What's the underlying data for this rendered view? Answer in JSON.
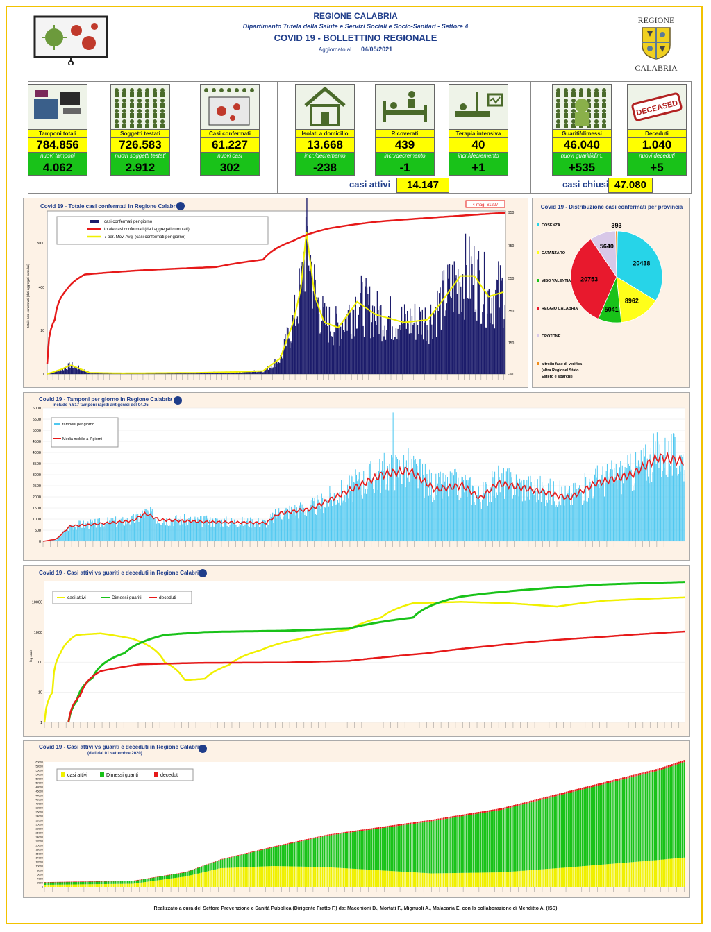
{
  "header": {
    "region": "REGIONE CALABRIA",
    "department": "Dipartimento Tutela della Salute e Servizi Sociali e Socio-Sanitari - Settore 4",
    "title": "COVID 19 - BOLLETTINO REGIONALE",
    "updated_label": "Aggiornato al",
    "updated_date": "04/05/2021",
    "logo_top": "REGIONE",
    "logo_bottom": "CALABRIA"
  },
  "kpis": [
    {
      "label": "Tamponi totali",
      "value": "784.856",
      "sub_label": "nuovi tamponi",
      "sub_value": "4.062"
    },
    {
      "label": "Soggetti testati",
      "value": "726.583",
      "sub_label": "nuovi soggetti testati",
      "sub_value": "2.912"
    },
    {
      "label": "Casi confermati",
      "value": "61.227",
      "sub_label": "nuovi casi",
      "sub_value": "302"
    },
    {
      "label": "Isolati a domicilio",
      "value": "13.668",
      "sub_label": "incr./decremento",
      "sub_value": "-238"
    },
    {
      "label": "Ricoverati",
      "value": "439",
      "sub_label": "incr./decremento",
      "sub_value": "-1"
    },
    {
      "label": "Terapia intensiva",
      "value": "40",
      "sub_label": "incr./decremento",
      "sub_value": "+1"
    },
    {
      "label": "Guariti/dimessi",
      "value": "46.040",
      "sub_label": "nuovi guariti/dim.",
      "sub_value": "+535"
    },
    {
      "label": "Deceduti",
      "value": "1.040",
      "sub_label": "nuovi deceduti",
      "sub_value": "+5"
    }
  ],
  "deceased_stamp": "DECEASED",
  "totals": {
    "active_label": "casi attivi",
    "active_value": "14.147",
    "closed_label": "casi chiusi",
    "closed_value": "47.080"
  },
  "footer": "Realizzato a cura del Settore Prevenzione e Sanità Pubblica (Dirigente Fratto F.) da:  Macchioni D., Mortati F., Mignuoli A., Malacaria E. con la collaborazione di Menditto A. (ISS)",
  "chart_data": [
    {
      "type": "bar+line",
      "title": "Covid 19 - Totale casi confermati in Regione Calabria",
      "annotation": "4-mag; 61227",
      "ylabel": "totale casi confermati (dati aggregati cumulati)",
      "y_left_ticks": [
        "8000",
        "400",
        "20",
        "1"
      ],
      "y_right_ticks": [
        "950",
        "750",
        "550",
        "350",
        "150",
        "-50"
      ],
      "legend": [
        "casi confermati per giorno",
        "totale casi confermati (dati aggregati cumulati)",
        "7 per. Mov. Avg. (casi confermati per giorno)"
      ],
      "colors": {
        "bars": "#1c1c6b",
        "cumulative": "#e61919",
        "avg": "#f0f000"
      },
      "daily_keypoints": [
        [
          0,
          0
        ],
        [
          15,
          18
        ],
        [
          25,
          35
        ],
        [
          35,
          20
        ],
        [
          45,
          5
        ],
        [
          80,
          3
        ],
        [
          120,
          4
        ],
        [
          160,
          5
        ],
        [
          200,
          8
        ],
        [
          230,
          12
        ],
        [
          248,
          60
        ],
        [
          262,
          200
        ],
        [
          270,
          330
        ],
        [
          276,
          550
        ],
        [
          285,
          300
        ],
        [
          295,
          200
        ],
        [
          310,
          180
        ],
        [
          330,
          280
        ],
        [
          350,
          230
        ],
        [
          380,
          200
        ],
        [
          405,
          210
        ],
        [
          420,
          280
        ],
        [
          440,
          380
        ],
        [
          455,
          380
        ],
        [
          470,
          300
        ],
        [
          488,
          320
        ]
      ],
      "cumulative_keypoints": [
        [
          0,
          1
        ],
        [
          8,
          40
        ],
        [
          20,
          300
        ],
        [
          40,
          900
        ],
        [
          100,
          1200
        ],
        [
          180,
          1500
        ],
        [
          230,
          2500
        ],
        [
          262,
          9000
        ],
        [
          300,
          21000
        ],
        [
          350,
          33000
        ],
        [
          400,
          42000
        ],
        [
          440,
          50000
        ],
        [
          488,
          61227
        ]
      ]
    },
    {
      "type": "pie",
      "title": "Covid 19 - Distribuzione casi confermati per provincia",
      "labels": [
        "COSENZA",
        "CATANZARO",
        "VIBO VALENTIA",
        "REGGIO CALABRIA",
        "CROTONE",
        "altro/in fase di verifica (altra Regione/ Stato Estero e sbarchi)"
      ],
      "values": [
        20438,
        8962,
        5041,
        20753,
        5640,
        393
      ],
      "value_labels": [
        "20438",
        "8962",
        "5041",
        "20753",
        "5640",
        "393"
      ],
      "colors": [
        "#27d4e8",
        "#ffff1a",
        "#19c219",
        "#e8192d",
        "#d8c8e8",
        "#f08c1a"
      ]
    },
    {
      "type": "bar+line",
      "title": "Covid 19 - Tamponi per giorno in Regione Calabria",
      "subtitle": "include n.517 tamponi rapidi antigenici del 04.05",
      "y_ticks": [
        "6000",
        "5500",
        "5000",
        "4500",
        "4000",
        "3500",
        "3000",
        "2500",
        "2000",
        "1500",
        "1000",
        "500",
        "0"
      ],
      "ylim": [
        0,
        6000
      ],
      "legend": [
        "tamponi per giorno",
        "Media mobile a 7 giorni"
      ],
      "colors": {
        "bars": "#4fc8f0",
        "avg": "#e61919"
      },
      "avg_keypoints": [
        [
          0,
          0
        ],
        [
          15,
          100
        ],
        [
          30,
          700
        ],
        [
          60,
          800
        ],
        [
          100,
          950
        ],
        [
          115,
          1300
        ],
        [
          130,
          1000
        ],
        [
          180,
          900
        ],
        [
          250,
          850
        ],
        [
          265,
          1300
        ],
        [
          300,
          1500
        ],
        [
          340,
          2300
        ],
        [
          380,
          3100
        ],
        [
          410,
          3300
        ],
        [
          440,
          2400
        ],
        [
          470,
          2600
        ],
        [
          490,
          2000
        ],
        [
          510,
          2700
        ],
        [
          560,
          2300
        ],
        [
          590,
          2000
        ],
        [
          620,
          2700
        ],
        [
          660,
          3100
        ],
        [
          690,
          3900
        ],
        [
          720,
          3700
        ]
      ]
    },
    {
      "type": "line",
      "title": "Covid 19 - Casi attivi vs guariti e deceduti in Regione Calabria",
      "yscale": "log",
      "y_ticks": [
        "10000",
        "1000",
        "100",
        "10",
        "1"
      ],
      "ylabel": "log scale",
      "series": [
        {
          "name": "casi attivi",
          "color": "#f0f000",
          "keypoints": [
            [
              0,
              1
            ],
            [
              10,
              10
            ],
            [
              20,
              200
            ],
            [
              40,
              800
            ],
            [
              70,
              900
            ],
            [
              110,
              600
            ],
            [
              150,
              100
            ],
            [
              175,
              25
            ],
            [
              200,
              28
            ],
            [
              230,
              80
            ],
            [
              270,
              250
            ],
            [
              320,
              600
            ],
            [
              380,
              1200
            ],
            [
              420,
              3000
            ],
            [
              460,
              9000
            ],
            [
              520,
              10000
            ],
            [
              580,
              9000
            ],
            [
              640,
              7000
            ],
            [
              700,
              11000
            ],
            [
              760,
              13000
            ],
            [
              800,
              14147
            ]
          ]
        },
        {
          "name": "Dimessi guariti",
          "color": "#19c219",
          "keypoints": [
            [
              30,
              1
            ],
            [
              40,
              5
            ],
            [
              60,
              30
            ],
            [
              100,
              200
            ],
            [
              150,
              800
            ],
            [
              200,
              1000
            ],
            [
              300,
              1100
            ],
            [
              380,
              1300
            ],
            [
              460,
              3000
            ],
            [
              520,
              15000
            ],
            [
              600,
              25000
            ],
            [
              700,
              38000
            ],
            [
              800,
              46040
            ]
          ]
        },
        {
          "name": "deceduti",
          "color": "#e61919",
          "keypoints": [
            [
              30,
              1
            ],
            [
              45,
              8
            ],
            [
              70,
              50
            ],
            [
              120,
              85
            ],
            [
              200,
              95
            ],
            [
              300,
              97
            ],
            [
              380,
              110
            ],
            [
              430,
              150
            ],
            [
              480,
              200
            ],
            [
              560,
              350
            ],
            [
              620,
              500
            ],
            [
              700,
              700
            ],
            [
              800,
              1040
            ]
          ]
        }
      ]
    },
    {
      "type": "area",
      "title": "Covid 19 - Casi attivi vs guariti e deceduti in Regione Calabria",
      "subtitle": "(dati dal 01 settembre 2020)",
      "y_ticks": [
        "60000",
        "58000",
        "56000",
        "54000",
        "52000",
        "50000",
        "48000",
        "46000",
        "44000",
        "42000",
        "40000",
        "38000",
        "36000",
        "34000",
        "32000",
        "30000",
        "28000",
        "26000",
        "24000",
        "22000",
        "20000",
        "18000",
        "16000",
        "14000",
        "12000",
        "10000",
        "8000",
        "6000",
        "4000",
        "2000",
        "0"
      ],
      "ylim": [
        0,
        60000
      ],
      "legend": [
        "casi attivi",
        "Dimessi guariti",
        "deceduti"
      ],
      "colors": {
        "active": "#f0f000",
        "recovered": "#19c219",
        "deceased": "#e61919"
      },
      "active_keypoints": [
        [
          0,
          1000
        ],
        [
          100,
          1500
        ],
        [
          160,
          5000
        ],
        [
          200,
          9000
        ],
        [
          260,
          10000
        ],
        [
          320,
          9500
        ],
        [
          380,
          8000
        ],
        [
          440,
          6500
        ],
        [
          520,
          7000
        ],
        [
          600,
          9500
        ],
        [
          700,
          13000
        ],
        [
          730,
          14147
        ]
      ],
      "recovered_keypoints": [
        [
          0,
          1200
        ],
        [
          100,
          1300
        ],
        [
          160,
          2000
        ],
        [
          200,
          4000
        ],
        [
          260,
          9000
        ],
        [
          320,
          15000
        ],
        [
          380,
          20000
        ],
        [
          440,
          25000
        ],
        [
          520,
          30000
        ],
        [
          600,
          36000
        ],
        [
          700,
          43000
        ],
        [
          730,
          46040
        ]
      ],
      "deceased_keypoints": [
        [
          0,
          100
        ],
        [
          160,
          150
        ],
        [
          260,
          400
        ],
        [
          400,
          700
        ],
        [
          600,
          900
        ],
        [
          730,
          1040
        ]
      ]
    }
  ]
}
